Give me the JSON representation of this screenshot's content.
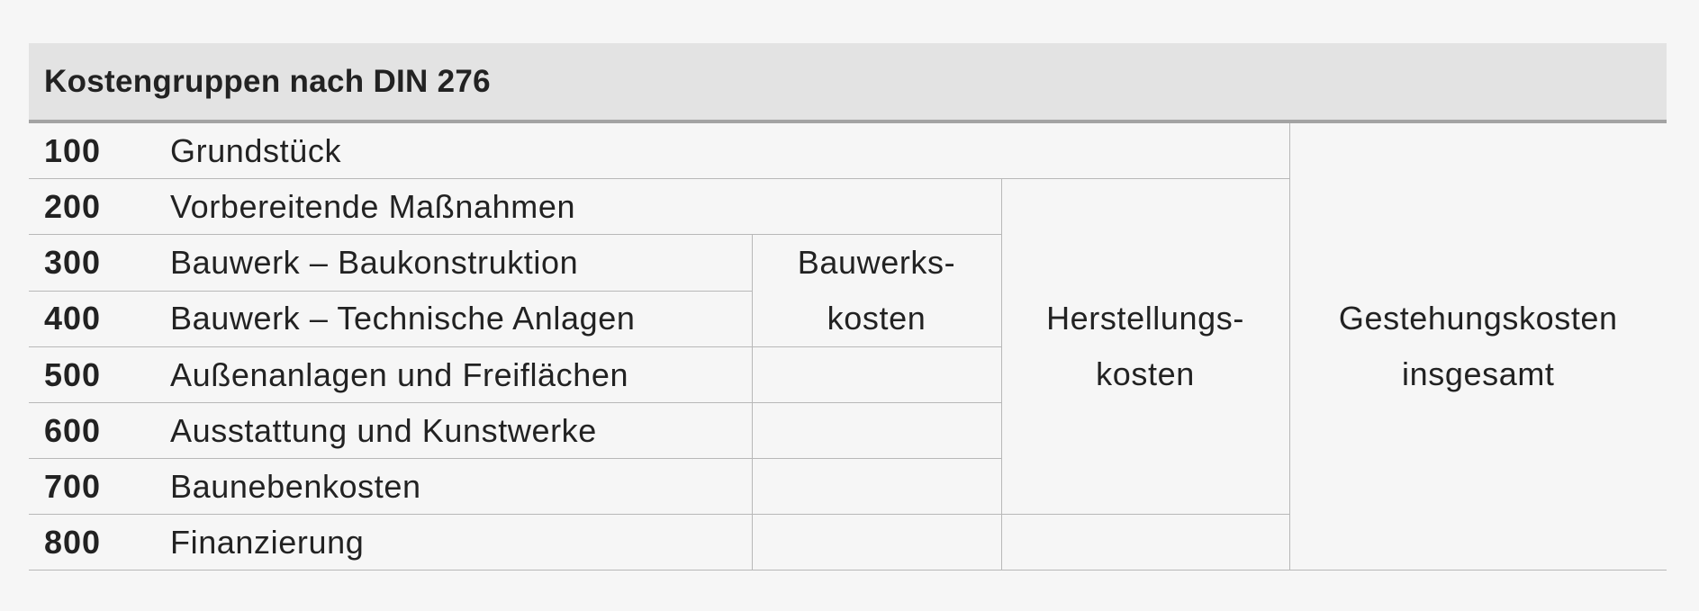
{
  "title": "Kostengruppen nach DIN 276",
  "rows": [
    {
      "number": "100",
      "label": "Grundstück"
    },
    {
      "number": "200",
      "label": "Vorbereitende Maßnahmen"
    },
    {
      "number": "300",
      "label": "Bauwerk – Baukonstruktion"
    },
    {
      "number": "400",
      "label": "Bauwerk – Technische Anlagen"
    },
    {
      "number": "500",
      "label": "Außenanlagen und Freiflächen"
    },
    {
      "number": "600",
      "label": "Ausstattung und Kunstwerke"
    },
    {
      "number": "700",
      "label": "Baunebenkosten"
    },
    {
      "number": "800",
      "label": "Finanzierung"
    }
  ],
  "groups": {
    "bauwerkskosten": [
      "Bauwerks-",
      "kosten"
    ],
    "herstellungskosten": [
      "Herstellungs-",
      "kosten"
    ],
    "gestehungskosten": [
      "Gestehungskosten",
      "insgesamt"
    ]
  }
}
